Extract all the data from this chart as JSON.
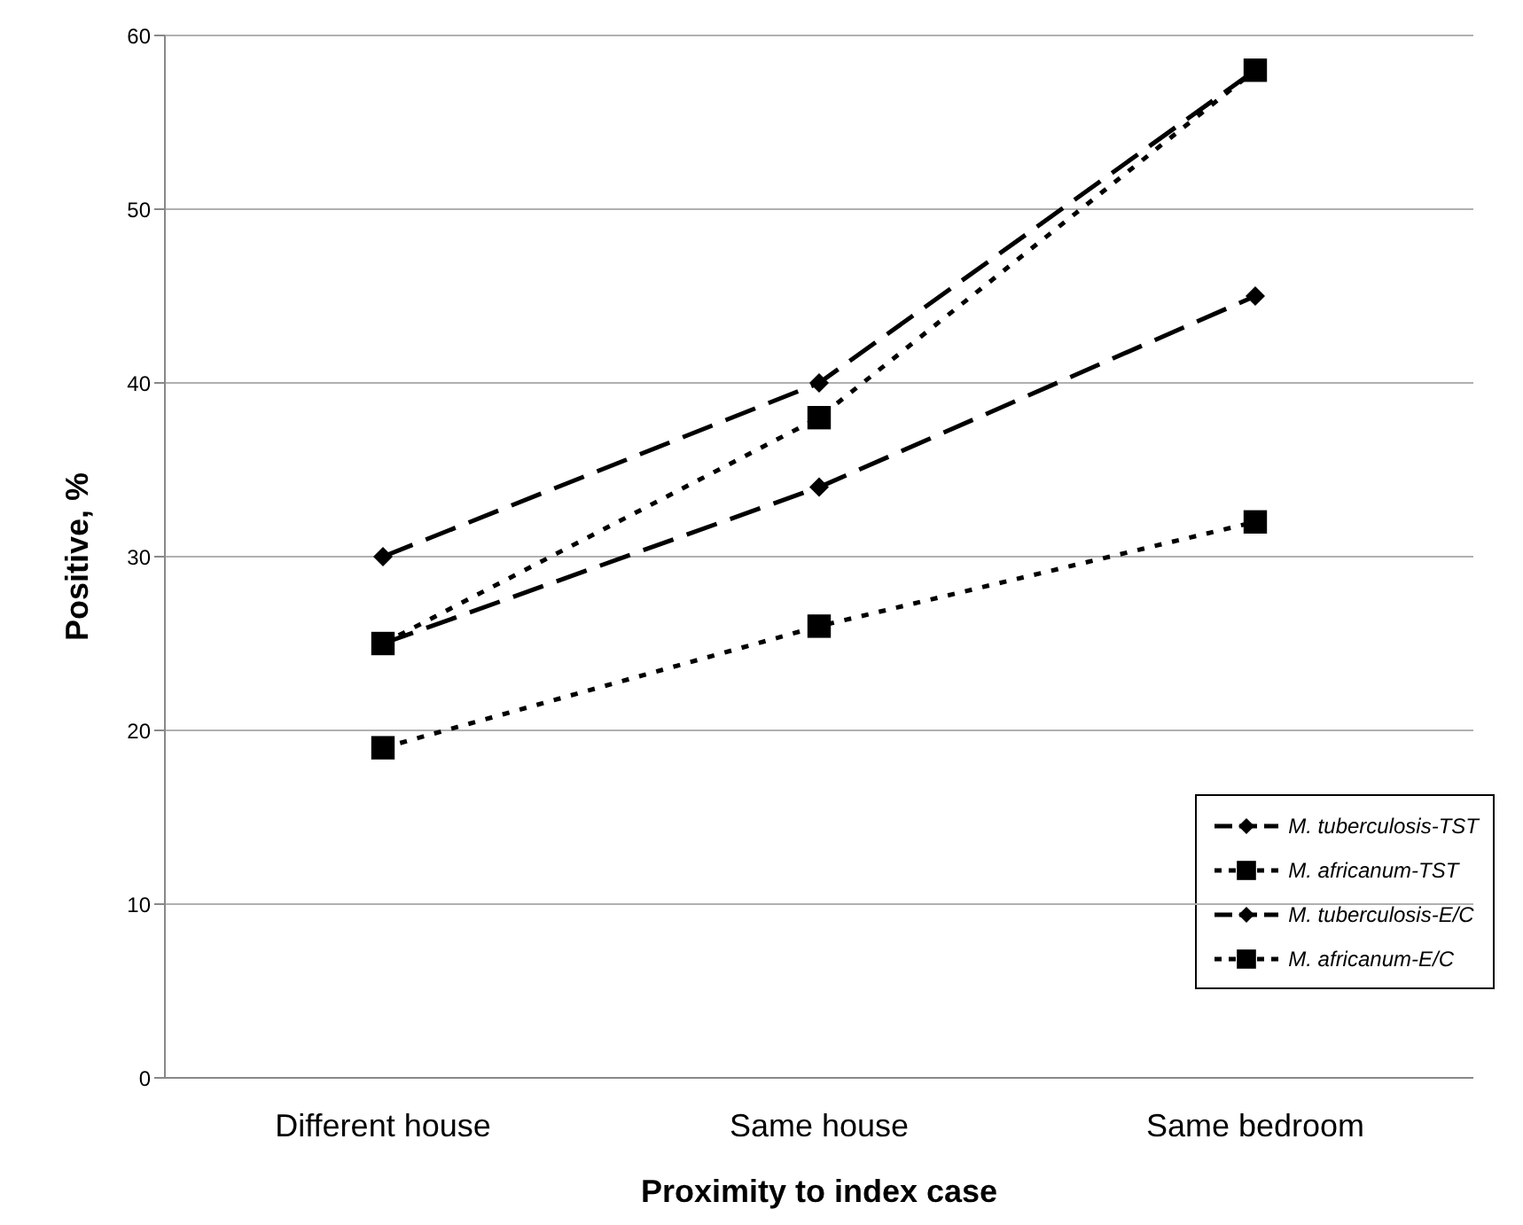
{
  "chart_data": {
    "type": "line",
    "xlabel": "Proximity to index case",
    "ylabel": "Positive, %",
    "categories": [
      "Different house",
      "Same house",
      "Same bedroom"
    ],
    "ylim": [
      0,
      60
    ],
    "yticks": [
      0,
      10,
      20,
      30,
      40,
      50,
      60
    ],
    "grid": "y",
    "legend": "bottom right",
    "series": [
      {
        "name": "M. tuberculosis-TST",
        "color": "#000000",
        "values": [
          30,
          40,
          58
        ],
        "marker": "diamond",
        "line_style": "dashed"
      },
      {
        "name": "M. africanum-TST",
        "color": "#000000",
        "values": [
          25,
          38,
          58
        ],
        "marker": "square",
        "line_style": "dotted"
      },
      {
        "name": "M. tuberculosis-E/C",
        "color": "#000000",
        "values": [
          25,
          34,
          45
        ],
        "marker": "diamond",
        "line_style": "dashed"
      },
      {
        "name": "M. africanum-E/C",
        "color": "#000000",
        "values": [
          19,
          26,
          32
        ],
        "marker": "square",
        "line_style": "dotted"
      }
    ]
  }
}
